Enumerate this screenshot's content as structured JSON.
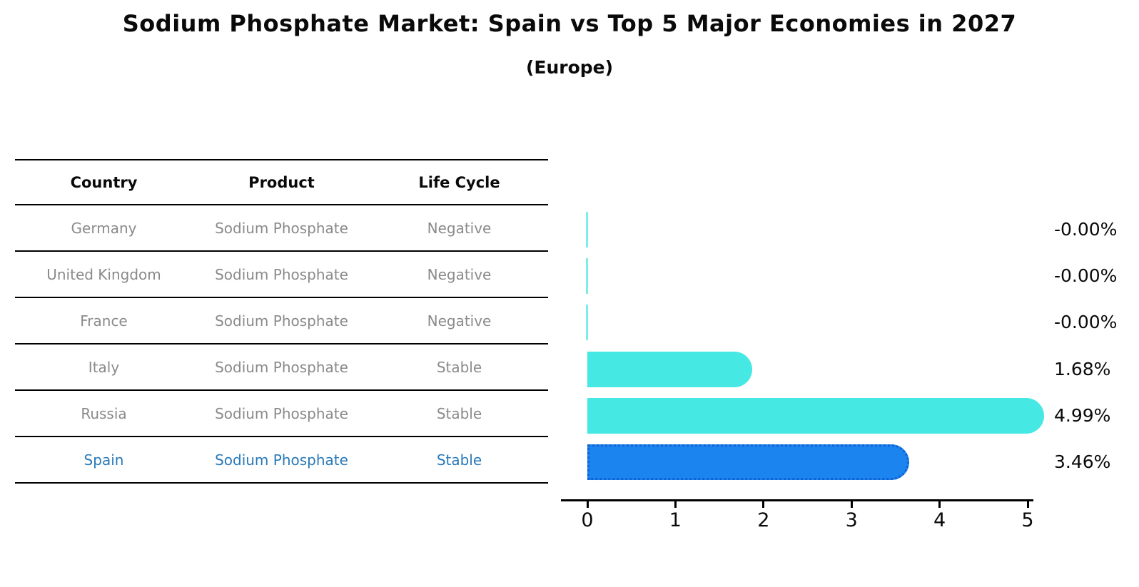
{
  "title": "Sodium Phosphate Market: Spain vs Top 5 Major Economies in 2027",
  "subtitle": "(Europe)",
  "table": {
    "headers": [
      "Country",
      "Product",
      "Life Cycle"
    ],
    "rows": [
      {
        "country": "Germany",
        "product": "Sodium Phosphate",
        "life_cycle": "Negative",
        "highlight": false
      },
      {
        "country": "United Kingdom",
        "product": "Sodium Phosphate",
        "life_cycle": "Negative",
        "highlight": false
      },
      {
        "country": "France",
        "product": "Sodium Phosphate",
        "life_cycle": "Negative",
        "highlight": false
      },
      {
        "country": "Italy",
        "product": "Sodium Phosphate",
        "life_cycle": "Stable",
        "highlight": false
      },
      {
        "country": "Russia",
        "product": "Sodium Phosphate",
        "life_cycle": "Stable",
        "highlight": false
      },
      {
        "country": "Spain",
        "product": "Sodium Phosphate",
        "life_cycle": "Stable",
        "highlight": true
      }
    ]
  },
  "chart_data": {
    "type": "bar",
    "orientation": "horizontal",
    "title": "Sodium Phosphate Market: Spain vs Top 5 Major Economies in 2027 (Europe)",
    "categories": [
      "Germany",
      "United Kingdom",
      "France",
      "Italy",
      "Russia",
      "Spain"
    ],
    "values": [
      -0.0,
      -0.0,
      -0.0,
      1.68,
      4.99,
      3.46
    ],
    "value_labels": [
      "-0.00%",
      "-0.00%",
      "-0.00%",
      "1.68%",
      "4.99%",
      "3.46%"
    ],
    "xlabel": "",
    "ylabel": "",
    "xlim": [
      0,
      5
    ],
    "xticks": [
      0,
      1,
      2,
      3,
      4,
      5
    ],
    "grid": false,
    "legend": false,
    "bar_color": "#45e8e2",
    "highlight_index": 5,
    "highlight_color": "#1b84ee",
    "highlight_edge_color": "#0f62d0",
    "highlight_text_color": "#2979b8"
  }
}
